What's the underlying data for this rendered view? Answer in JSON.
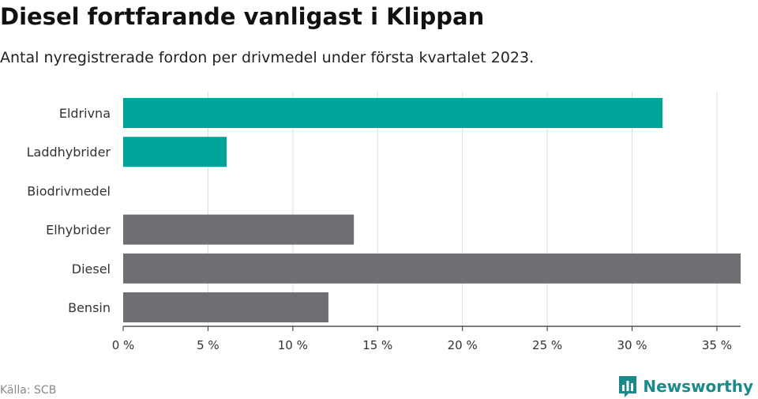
{
  "header": {
    "title": "Diesel fortfarande vanligast i Klippan",
    "subtitle": "Antal nyregistrerade fordon per drivmedel under första kvartalet 2023."
  },
  "footer": {
    "source": "Källa: SCB",
    "brand": "Newsworthy",
    "brand_icon": "bar-chart-speech-bubble-icon"
  },
  "colors": {
    "highlight": "#00a59a",
    "default": "#6f6e73",
    "grid": "#dcdcdc",
    "brand": "#1a8a8a"
  },
  "chart_data": {
    "type": "bar",
    "orientation": "horizontal",
    "categories": [
      "Eldrivna",
      "Laddhybrider",
      "Biodrivmedel",
      "Elhybrider",
      "Diesel",
      "Bensin"
    ],
    "values": [
      31.8,
      6.1,
      0,
      13.6,
      36.4,
      12.1
    ],
    "bar_colors": [
      "#00a59a",
      "#00a59a",
      "#6f6e73",
      "#6f6e73",
      "#6f6e73",
      "#6f6e73"
    ],
    "xticks": [
      0,
      5,
      10,
      15,
      20,
      25,
      30,
      35
    ],
    "tick_labels": [
      "0 %",
      "5 %",
      "10 %",
      "15 %",
      "20 %",
      "25 %",
      "30 %",
      "35 %"
    ],
    "xlim": [
      0,
      36.4
    ],
    "grid": true,
    "legend": "none"
  }
}
